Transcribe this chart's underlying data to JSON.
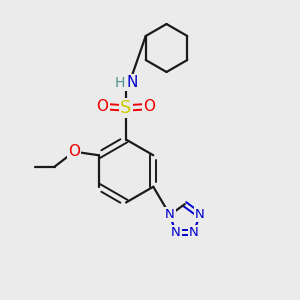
{
  "background_color": "#ebebeb",
  "bond_color": "#1a1a1a",
  "atom_colors": {
    "N": "#0000cc",
    "O": "#ee0000",
    "S": "#cccc00",
    "C": "#1a1a1a",
    "H": "#4a9090"
  },
  "fig_width": 3.0,
  "fig_height": 3.0,
  "dpi": 100
}
